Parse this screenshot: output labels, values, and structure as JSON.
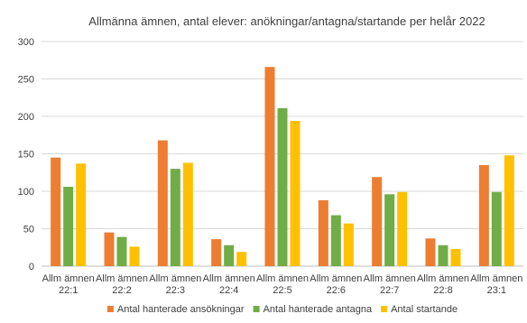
{
  "chart_data": {
    "type": "bar",
    "title": "Allmänna ämnen, antal elever: anökningar/antagna/startande per helår 2022",
    "categories": [
      [
        "Allm ämnen",
        "22:1"
      ],
      [
        "Allm ämnen",
        "22:2"
      ],
      [
        "Allm ämnen",
        "22:3"
      ],
      [
        "Allm ämnen",
        "22:4"
      ],
      [
        "Allm ämnen",
        "22:5"
      ],
      [
        "Allm ämnen",
        "22:6"
      ],
      [
        "Allm ämnen",
        "22:7"
      ],
      [
        "Allm ämnen",
        "22:8"
      ],
      [
        "Allm ämnen",
        "23:1"
      ]
    ],
    "series": [
      {
        "name": "Antal hanterade ansökningar",
        "color": "#ED7D31",
        "values": [
          145,
          45,
          168,
          36,
          266,
          88,
          119,
          37,
          135
        ]
      },
      {
        "name": "Antal hanterade antagna",
        "color": "#70AD47",
        "values": [
          106,
          39,
          130,
          28,
          211,
          68,
          96,
          28,
          99
        ]
      },
      {
        "name": "Antal startande",
        "color": "#FFC000",
        "values": [
          137,
          26,
          138,
          19,
          194,
          57,
          99,
          23,
          148
        ]
      }
    ],
    "ylim": [
      0,
      300
    ],
    "yticks": [
      0,
      50,
      100,
      150,
      200,
      250,
      300
    ],
    "grid": true,
    "legend": "bottom"
  }
}
